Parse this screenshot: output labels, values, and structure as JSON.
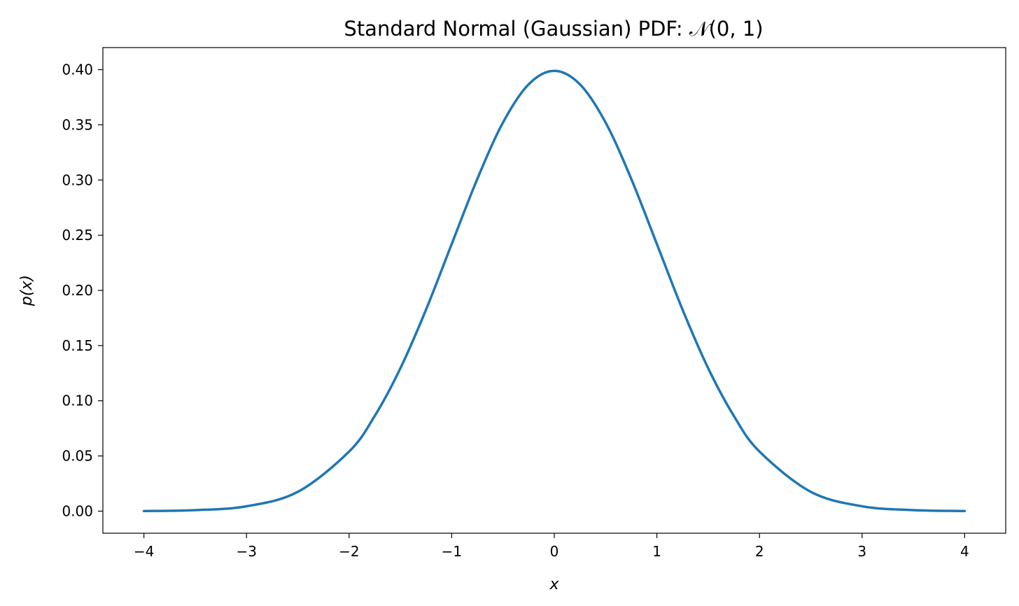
{
  "chart_data": {
    "type": "line",
    "title": "Standard Normal (Gaussian) PDF:  𝒩(0, 1)",
    "xlabel": "x",
    "ylabel": "p(x)",
    "xlim": [
      -4.4,
      4.4
    ],
    "ylim": [
      -0.02,
      0.42
    ],
    "x_ticks": [
      -4,
      -3,
      -2,
      -1,
      0,
      1,
      2,
      3,
      4
    ],
    "x_tick_labels": [
      "−4",
      "−3",
      "−2",
      "−1",
      "0",
      "1",
      "2",
      "3",
      "4"
    ],
    "y_ticks": [
      0.0,
      0.05,
      0.1,
      0.15,
      0.2,
      0.25,
      0.3,
      0.35,
      0.4
    ],
    "y_tick_labels": [
      "0.00",
      "0.05",
      "0.10",
      "0.15",
      "0.20",
      "0.25",
      "0.30",
      "0.35",
      "0.40"
    ],
    "grid": false,
    "series": [
      {
        "color": "#1f77b4",
        "x": [
          -4.0,
          -3.5,
          -3.0,
          -2.5,
          -2.0,
          -1.75,
          -1.5,
          -1.25,
          -1.0,
          -0.75,
          -0.5,
          -0.25,
          0.0,
          0.25,
          0.5,
          0.75,
          1.0,
          1.25,
          1.5,
          1.75,
          2.0,
          2.5,
          3.0,
          3.5,
          4.0
        ],
        "y": [
          0.0001,
          0.0009,
          0.0044,
          0.0175,
          0.054,
          0.0863,
          0.1295,
          0.1826,
          0.242,
          0.3011,
          0.3521,
          0.3867,
          0.3989,
          0.3867,
          0.3521,
          0.3011,
          0.242,
          0.1826,
          0.1295,
          0.0863,
          0.054,
          0.0175,
          0.0044,
          0.0009,
          0.0001
        ]
      }
    ]
  }
}
